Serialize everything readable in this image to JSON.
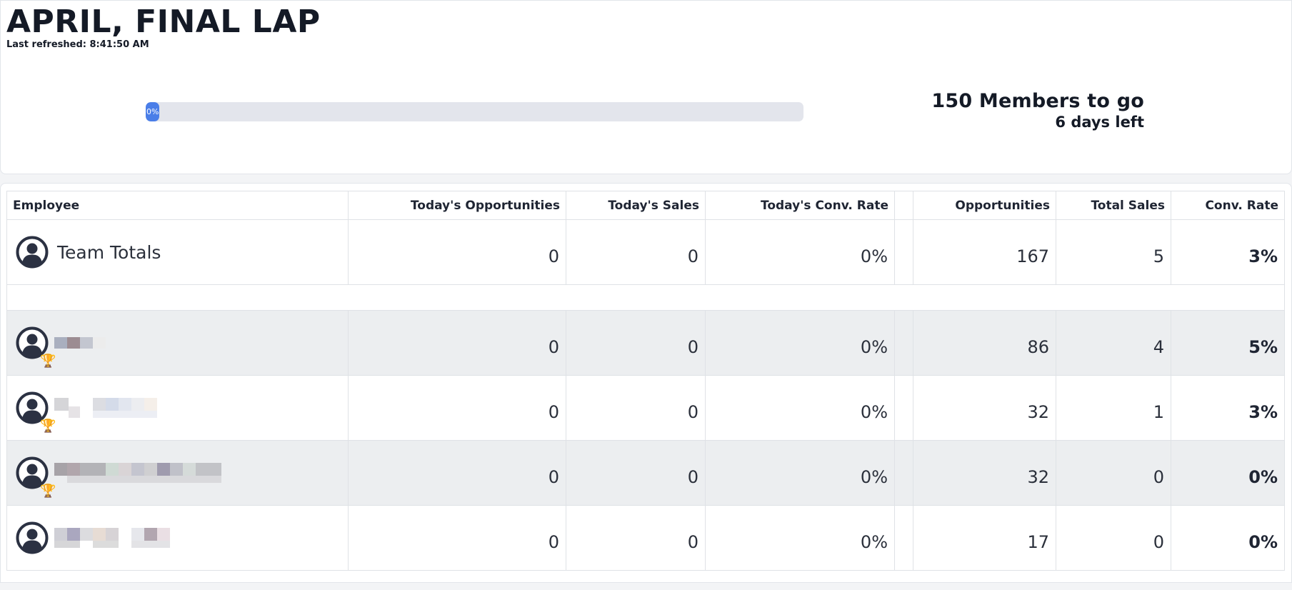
{
  "header": {
    "title": "APRIL, FINAL LAP",
    "last_refreshed_label": "Last refreshed:",
    "last_refreshed_time": "8:41:50 AM"
  },
  "progress": {
    "percent_label": "0%",
    "value": 0,
    "fill_color": "#4a7ee8"
  },
  "goal": {
    "members_to_go": "150 Members to go",
    "days_left": "6 days left"
  },
  "table": {
    "columns": [
      "Employee",
      "Today's Opportunities",
      "Today's Sales",
      "Today's Conv. Rate",
      "",
      "Opportunities",
      "Total Sales",
      "Conv. Rate"
    ],
    "totals": {
      "name": "Team Totals",
      "today_opps": "0",
      "today_sales": "0",
      "today_rate": "0%",
      "opps": "167",
      "total_sales": "5",
      "rate": "3%"
    },
    "rows": [
      {
        "trophy": "gold-trophy-icon",
        "today_opps": "0",
        "today_sales": "0",
        "today_rate": "0%",
        "opps": "86",
        "total_sales": "4",
        "rate": "5%"
      },
      {
        "trophy": "silver-trophy-icon",
        "today_opps": "0",
        "today_sales": "0",
        "today_rate": "0%",
        "opps": "32",
        "total_sales": "1",
        "rate": "3%"
      },
      {
        "trophy": "bronze-trophy-icon",
        "today_opps": "0",
        "today_sales": "0",
        "today_rate": "0%",
        "opps": "32",
        "total_sales": "0",
        "rate": "0%"
      },
      {
        "trophy": "",
        "today_opps": "0",
        "today_sales": "0",
        "today_rate": "0%",
        "opps": "17",
        "total_sales": "0",
        "rate": "0%"
      }
    ]
  }
}
